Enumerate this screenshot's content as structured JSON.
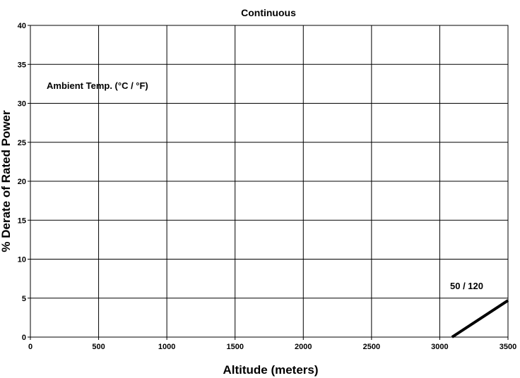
{
  "chart_data": {
    "type": "line",
    "title": "Continuous",
    "xlabel": "Altitude (meters)",
    "ylabel": "% Derate of Rated Power",
    "xlim": [
      0,
      3500
    ],
    "ylim": [
      0,
      40
    ],
    "xticks": [
      0,
      500,
      1000,
      1500,
      2000,
      2500,
      3000,
      3500
    ],
    "yticks": [
      0,
      5,
      10,
      15,
      20,
      25,
      30,
      35,
      40
    ],
    "grid": true,
    "legend_title": "Ambient Temp.  (°C / °F)",
    "series": [
      {
        "name": "50 / 120",
        "x": [
          3090,
          3500
        ],
        "y": [
          0,
          4.7
        ],
        "color": "#000000"
      }
    ]
  }
}
